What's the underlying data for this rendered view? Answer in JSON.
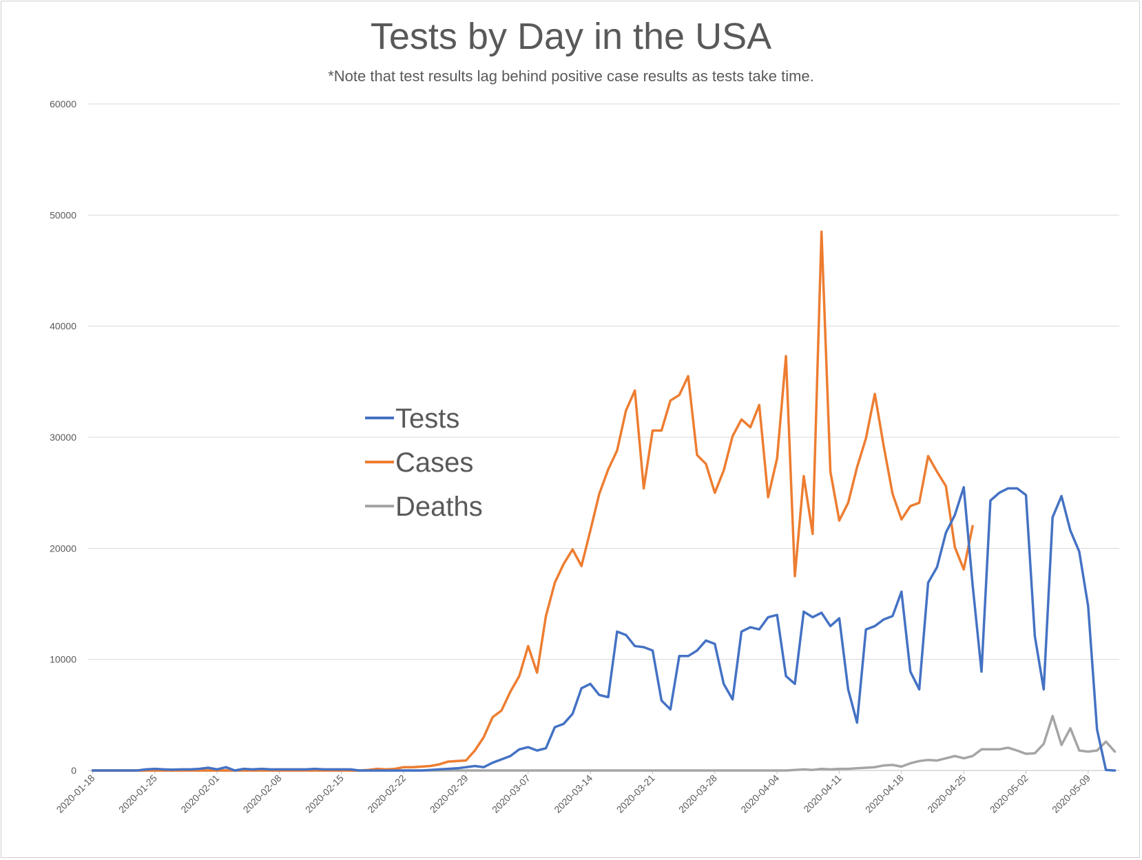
{
  "chart_data": {
    "type": "line",
    "title": "Tests by Day in the USA",
    "subtitle": "*Note that test results lag behind positive case results as tests take time.",
    "xlabel": "",
    "ylabel": "",
    "ylim": [
      0,
      60000
    ],
    "y_ticks": [
      "0",
      "10000",
      "20000",
      "30000",
      "40000",
      "50000",
      "60000"
    ],
    "x_start": "2020-01-18",
    "x_ticks": [
      "2020-01-18",
      "2020-01-25",
      "2020-02-01",
      "2020-02-08",
      "2020-02-15",
      "2020-02-22",
      "2020-02-29",
      "2020-03-07",
      "2020-03-14",
      "2020-03-21",
      "2020-03-28",
      "2020-04-04",
      "2020-04-11",
      "2020-04-18",
      "2020-04-25",
      "2020-05-02",
      "2020-05-09"
    ],
    "grid": true,
    "legend_position": "center-left",
    "series": [
      {
        "name": "Tests",
        "color": "#4472c4",
        "points": [
          [
            "2020-01-18",
            0
          ],
          [
            "2020-01-19",
            0
          ],
          [
            "2020-01-20",
            0
          ],
          [
            "2020-01-21",
            0
          ],
          [
            "2020-01-22",
            0
          ],
          [
            "2020-01-23",
            0
          ],
          [
            "2020-01-24",
            100
          ],
          [
            "2020-01-25",
            150
          ],
          [
            "2020-01-26",
            100
          ],
          [
            "2020-01-27",
            80
          ],
          [
            "2020-01-28",
            100
          ],
          [
            "2020-01-29",
            100
          ],
          [
            "2020-01-30",
            150
          ],
          [
            "2020-01-31",
            250
          ],
          [
            "2020-02-01",
            100
          ],
          [
            "2020-02-02",
            300
          ],
          [
            "2020-02-03",
            0
          ],
          [
            "2020-02-04",
            150
          ],
          [
            "2020-02-05",
            100
          ],
          [
            "2020-02-06",
            150
          ],
          [
            "2020-02-07",
            100
          ],
          [
            "2020-02-08",
            100
          ],
          [
            "2020-02-09",
            100
          ],
          [
            "2020-02-10",
            100
          ],
          [
            "2020-02-11",
            100
          ],
          [
            "2020-02-12",
            150
          ],
          [
            "2020-02-13",
            100
          ],
          [
            "2020-02-14",
            100
          ],
          [
            "2020-02-15",
            100
          ],
          [
            "2020-02-16",
            100
          ],
          [
            "2020-02-17",
            0
          ],
          [
            "2020-02-18",
            0
          ],
          [
            "2020-02-19",
            0
          ],
          [
            "2020-02-20",
            0
          ],
          [
            "2020-02-21",
            0
          ],
          [
            "2020-02-22",
            0
          ],
          [
            "2020-02-23",
            0
          ],
          [
            "2020-02-24",
            0
          ],
          [
            "2020-02-25",
            50
          ],
          [
            "2020-02-26",
            100
          ],
          [
            "2020-02-27",
            150
          ],
          [
            "2020-02-28",
            200
          ],
          [
            "2020-02-29",
            300
          ],
          [
            "2020-03-01",
            400
          ],
          [
            "2020-03-02",
            300
          ],
          [
            "2020-03-03",
            700
          ],
          [
            "2020-03-04",
            1000
          ],
          [
            "2020-03-05",
            1300
          ],
          [
            "2020-03-06",
            1900
          ],
          [
            "2020-03-07",
            2100
          ],
          [
            "2020-03-08",
            1800
          ],
          [
            "2020-03-09",
            2000
          ],
          [
            "2020-03-10",
            3900
          ],
          [
            "2020-03-11",
            4200
          ],
          [
            "2020-03-12",
            5100
          ],
          [
            "2020-03-13",
            7400
          ],
          [
            "2020-03-14",
            7800
          ],
          [
            "2020-03-15",
            6800
          ],
          [
            "2020-03-16",
            6600
          ],
          [
            "2020-03-17",
            12500
          ],
          [
            "2020-03-18",
            12200
          ],
          [
            "2020-03-19",
            11200
          ],
          [
            "2020-03-20",
            11100
          ],
          [
            "2020-03-21",
            10800
          ],
          [
            "2020-03-22",
            6300
          ],
          [
            "2020-03-23",
            5500
          ],
          [
            "2020-03-24",
            10300
          ],
          [
            "2020-03-25",
            10300
          ],
          [
            "2020-03-26",
            10800
          ],
          [
            "2020-03-27",
            11700
          ],
          [
            "2020-03-28",
            11400
          ],
          [
            "2020-03-29",
            7800
          ],
          [
            "2020-03-30",
            6400
          ],
          [
            "2020-03-31",
            12500
          ],
          [
            "2020-04-01",
            12900
          ],
          [
            "2020-04-02",
            12700
          ],
          [
            "2020-04-03",
            13800
          ],
          [
            "2020-04-04",
            14000
          ],
          [
            "2020-04-05",
            8500
          ],
          [
            "2020-04-06",
            7800
          ],
          [
            "2020-04-07",
            14300
          ],
          [
            "2020-04-08",
            13800
          ],
          [
            "2020-04-09",
            14200
          ],
          [
            "2020-04-10",
            13000
          ],
          [
            "2020-04-11",
            13700
          ],
          [
            "2020-04-12",
            7300
          ],
          [
            "2020-04-13",
            4300
          ],
          [
            "2020-04-14",
            12700
          ],
          [
            "2020-04-15",
            13000
          ],
          [
            "2020-04-16",
            13600
          ],
          [
            "2020-04-17",
            13900
          ],
          [
            "2020-04-18",
            16100
          ],
          [
            "2020-04-19",
            8900
          ],
          [
            "2020-04-20",
            7300
          ],
          [
            "2020-04-21",
            16900
          ],
          [
            "2020-04-22",
            18300
          ],
          [
            "2020-04-23",
            21400
          ],
          [
            "2020-04-24",
            23000
          ],
          [
            "2020-04-25",
            25500
          ],
          [
            "2020-04-26",
            16700
          ],
          [
            "2020-04-27",
            8900
          ],
          [
            "2020-04-28",
            24300
          ],
          [
            "2020-04-29",
            25000
          ],
          [
            "2020-04-30",
            25400
          ],
          [
            "2020-05-01",
            25400
          ],
          [
            "2020-05-02",
            24800
          ],
          [
            "2020-05-03",
            12100
          ],
          [
            "2020-05-04",
            7300
          ],
          [
            "2020-05-05",
            22800
          ],
          [
            "2020-05-06",
            24700
          ],
          [
            "2020-05-07",
            21600
          ],
          [
            "2020-05-08",
            19700
          ],
          [
            "2020-05-09",
            14800
          ],
          [
            "2020-05-10",
            3700
          ],
          [
            "2020-05-11",
            50
          ],
          [
            "2020-05-12",
            0
          ]
        ]
      },
      {
        "name": "Cases",
        "color": "#ed7d31",
        "points": [
          [
            "2020-01-18",
            0
          ],
          [
            "2020-01-19",
            0
          ],
          [
            "2020-01-20",
            0
          ],
          [
            "2020-01-21",
            0
          ],
          [
            "2020-01-22",
            0
          ],
          [
            "2020-01-23",
            0
          ],
          [
            "2020-01-24",
            0
          ],
          [
            "2020-01-25",
            0
          ],
          [
            "2020-01-26",
            0
          ],
          [
            "2020-01-27",
            0
          ],
          [
            "2020-01-28",
            0
          ],
          [
            "2020-01-29",
            0
          ],
          [
            "2020-01-30",
            0
          ],
          [
            "2020-01-31",
            0
          ],
          [
            "2020-02-01",
            0
          ],
          [
            "2020-02-02",
            0
          ],
          [
            "2020-02-03",
            0
          ],
          [
            "2020-02-04",
            0
          ],
          [
            "2020-02-05",
            0
          ],
          [
            "2020-02-06",
            0
          ],
          [
            "2020-02-07",
            0
          ],
          [
            "2020-02-08",
            0
          ],
          [
            "2020-02-09",
            0
          ],
          [
            "2020-02-10",
            0
          ],
          [
            "2020-02-11",
            0
          ],
          [
            "2020-02-12",
            0
          ],
          [
            "2020-02-13",
            0
          ],
          [
            "2020-02-14",
            0
          ],
          [
            "2020-02-15",
            0
          ],
          [
            "2020-02-16",
            0
          ],
          [
            "2020-02-17",
            0
          ],
          [
            "2020-02-18",
            50
          ],
          [
            "2020-02-19",
            150
          ],
          [
            "2020-02-20",
            100
          ],
          [
            "2020-02-21",
            150
          ],
          [
            "2020-02-22",
            300
          ],
          [
            "2020-02-23",
            300
          ],
          [
            "2020-02-24",
            350
          ],
          [
            "2020-02-25",
            400
          ],
          [
            "2020-02-26",
            550
          ],
          [
            "2020-02-27",
            800
          ],
          [
            "2020-02-28",
            850
          ],
          [
            "2020-02-29",
            900
          ],
          [
            "2020-03-01",
            1800
          ],
          [
            "2020-03-02",
            3000
          ],
          [
            "2020-03-03",
            4800
          ],
          [
            "2020-03-04",
            5400
          ],
          [
            "2020-03-05",
            7100
          ],
          [
            "2020-03-06",
            8500
          ],
          [
            "2020-03-07",
            11200
          ],
          [
            "2020-03-08",
            8800
          ],
          [
            "2020-03-09",
            13900
          ],
          [
            "2020-03-10",
            16900
          ],
          [
            "2020-03-11",
            18600
          ],
          [
            "2020-03-12",
            19900
          ],
          [
            "2020-03-13",
            18400
          ],
          [
            "2020-03-14",
            21600
          ],
          [
            "2020-03-15",
            24900
          ],
          [
            "2020-03-16",
            27100
          ],
          [
            "2020-03-17",
            28800
          ],
          [
            "2020-03-18",
            32400
          ],
          [
            "2020-03-19",
            34200
          ],
          [
            "2020-03-20",
            25400
          ],
          [
            "2020-03-21",
            30600
          ],
          [
            "2020-03-22",
            30600
          ],
          [
            "2020-03-23",
            33300
          ],
          [
            "2020-03-24",
            33800
          ],
          [
            "2020-03-25",
            35500
          ],
          [
            "2020-03-26",
            28400
          ],
          [
            "2020-03-27",
            27600
          ],
          [
            "2020-03-28",
            25000
          ],
          [
            "2020-03-29",
            27000
          ],
          [
            "2020-03-30",
            30100
          ],
          [
            "2020-03-31",
            31600
          ],
          [
            "2020-04-01",
            30900
          ],
          [
            "2020-04-02",
            32900
          ],
          [
            "2020-04-03",
            24600
          ],
          [
            "2020-04-04",
            28100
          ],
          [
            "2020-04-05",
            37300
          ],
          [
            "2020-04-06",
            17500
          ],
          [
            "2020-04-07",
            26500
          ],
          [
            "2020-04-08",
            21300
          ],
          [
            "2020-04-09",
            48500
          ],
          [
            "2020-04-10",
            26900
          ],
          [
            "2020-04-11",
            22500
          ],
          [
            "2020-04-12",
            24100
          ],
          [
            "2020-04-13",
            27300
          ],
          [
            "2020-04-14",
            29900
          ],
          [
            "2020-04-15",
            33900
          ],
          [
            "2020-04-16",
            29200
          ],
          [
            "2020-04-17",
            24900
          ],
          [
            "2020-04-18",
            22600
          ],
          [
            "2020-04-19",
            23800
          ],
          [
            "2020-04-20",
            24100
          ],
          [
            "2020-04-21",
            28300
          ],
          [
            "2020-04-22",
            26900
          ],
          [
            "2020-04-23",
            25600
          ],
          [
            "2020-04-24",
            20100
          ],
          [
            "2020-04-25",
            18100
          ],
          [
            "2020-04-26",
            22000
          ]
        ]
      },
      {
        "name": "Deaths",
        "color": "#a5a5a5",
        "points": [
          [
            "2020-01-18",
            0
          ],
          [
            "2020-04-05",
            0
          ],
          [
            "2020-04-06",
            50
          ],
          [
            "2020-04-07",
            100
          ],
          [
            "2020-04-08",
            50
          ],
          [
            "2020-04-09",
            150
          ],
          [
            "2020-04-10",
            100
          ],
          [
            "2020-04-11",
            150
          ],
          [
            "2020-04-12",
            150
          ],
          [
            "2020-04-13",
            200
          ],
          [
            "2020-04-14",
            250
          ],
          [
            "2020-04-15",
            300
          ],
          [
            "2020-04-16",
            450
          ],
          [
            "2020-04-17",
            500
          ],
          [
            "2020-04-18",
            350
          ],
          [
            "2020-04-19",
            650
          ],
          [
            "2020-04-20",
            850
          ],
          [
            "2020-04-21",
            950
          ],
          [
            "2020-04-22",
            900
          ],
          [
            "2020-04-23",
            1100
          ],
          [
            "2020-04-24",
            1300
          ],
          [
            "2020-04-25",
            1100
          ],
          [
            "2020-04-26",
            1300
          ],
          [
            "2020-04-27",
            1900
          ],
          [
            "2020-04-28",
            1900
          ],
          [
            "2020-04-29",
            1900
          ],
          [
            "2020-04-30",
            2050
          ],
          [
            "2020-05-01",
            1800
          ],
          [
            "2020-05-02",
            1500
          ],
          [
            "2020-05-03",
            1550
          ],
          [
            "2020-05-04",
            2400
          ],
          [
            "2020-05-05",
            4900
          ],
          [
            "2020-05-06",
            2300
          ],
          [
            "2020-05-07",
            3800
          ],
          [
            "2020-05-08",
            1800
          ],
          [
            "2020-05-09",
            1700
          ],
          [
            "2020-05-10",
            1800
          ],
          [
            "2020-05-11",
            2600
          ],
          [
            "2020-05-12",
            1700
          ]
        ]
      }
    ]
  }
}
